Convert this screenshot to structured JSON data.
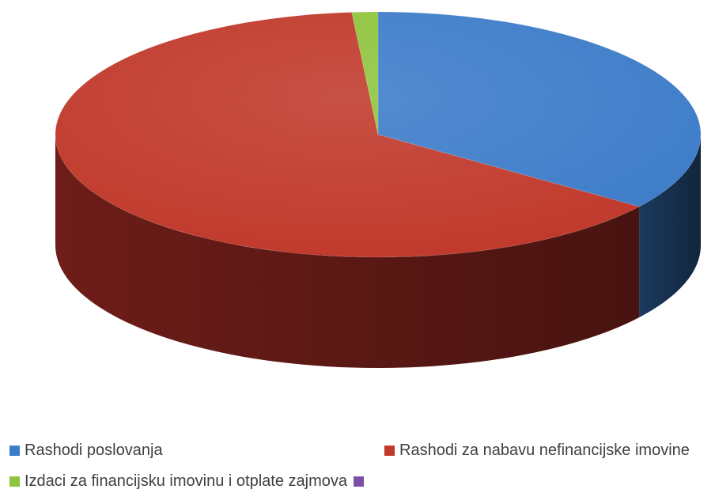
{
  "chart_data": {
    "type": "pie",
    "title": "",
    "labels": [
      "Rashodi poslovanja",
      "Rashodi za nabavu nefinancijske imovine",
      "Izdaci za financijsku imovinu i otplate zajmova",
      ""
    ],
    "values": [
      35.0,
      63.7,
      1.3,
      0.0
    ],
    "colors": [
      "#3d7cc9",
      "#c0392b",
      "#8fc43c",
      "#7b4fa6"
    ],
    "side_colors": [
      "#1b3a5e",
      "#6e1d18",
      "#4d6f1f",
      "#3d2756"
    ],
    "style": "3d",
    "legend_position": "bottom"
  }
}
